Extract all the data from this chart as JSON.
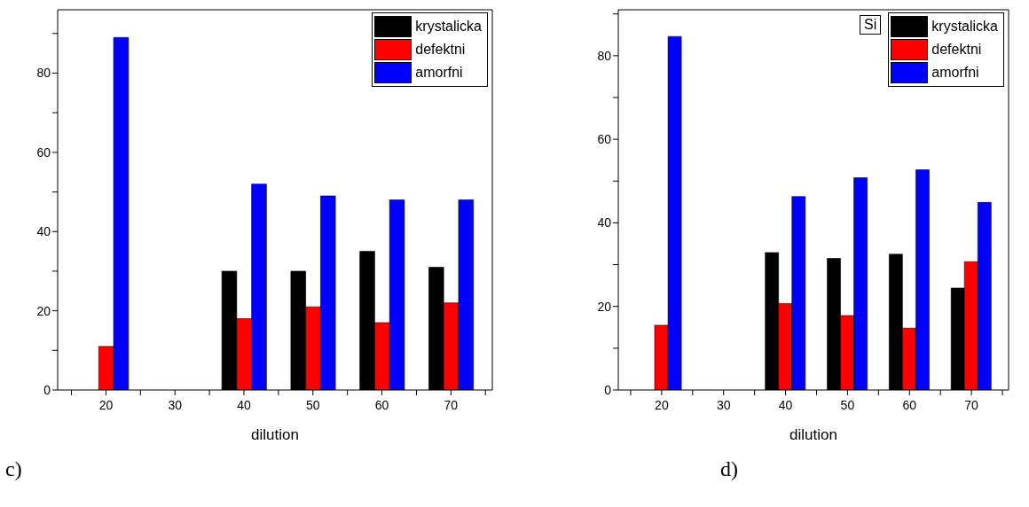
{
  "chart_data": [
    {
      "type": "bar",
      "xlabel": "dilution",
      "x": [
        20,
        30,
        40,
        50,
        60,
        70
      ],
      "series": [
        {
          "name": "krystalicka",
          "color": "#000000",
          "values": [
            null,
            null,
            30,
            30,
            35,
            31
          ]
        },
        {
          "name": "defektni",
          "color": "#ff0000",
          "values": [
            11,
            null,
            18,
            21,
            17,
            22
          ]
        },
        {
          "name": "amorfni",
          "color": "#0000ff",
          "values": [
            89,
            null,
            52,
            49,
            48,
            48
          ]
        }
      ],
      "xlim": [
        13,
        76
      ],
      "ylim": [
        0,
        96
      ],
      "xticks": [
        {
          "value": 15,
          "label": null
        },
        20,
        {
          "value": 25,
          "label": null
        },
        30,
        {
          "value": 35,
          "label": null
        },
        40,
        {
          "value": 45,
          "label": null
        },
        50,
        {
          "value": 55,
          "label": null
        },
        60,
        {
          "value": 65,
          "label": null
        },
        70,
        {
          "value": 75,
          "label": null
        }
      ],
      "yticks": [
        0,
        {
          "value": 10,
          "label": null
        },
        20,
        {
          "value": 30,
          "label": null
        },
        40,
        {
          "value": 50,
          "label": null
        },
        60,
        {
          "value": 70,
          "label": null
        },
        80,
        {
          "value": 90,
          "label": null
        }
      ],
      "legend": "top right",
      "annotations": [
        "c)"
      ]
    },
    {
      "type": "bar",
      "xlabel": "dilution",
      "x": [
        20,
        30,
        40,
        50,
        60,
        70
      ],
      "legend_title": "Si",
      "series": [
        {
          "name": "krystalicka",
          "color": "#000000",
          "values": [
            null,
            null,
            32.9,
            31.5,
            32.5,
            24.4
          ]
        },
        {
          "name": "defektni",
          "color": "#ff0000",
          "values": [
            15.5,
            null,
            20.7,
            17.8,
            14.8,
            30.7
          ]
        },
        {
          "name": "amorfni",
          "color": "#0000ff",
          "values": [
            84.6,
            null,
            46.3,
            50.8,
            52.7,
            44.9
          ]
        }
      ],
      "xlim": [
        13,
        76
      ],
      "ylim": [
        0,
        91
      ],
      "xticks": [
        {
          "value": 15,
          "label": null
        },
        20,
        {
          "value": 25,
          "label": null
        },
        30,
        {
          "value": 35,
          "label": null
        },
        40,
        {
          "value": 45,
          "label": null
        },
        50,
        {
          "value": 55,
          "label": null
        },
        60,
        {
          "value": 65,
          "label": null
        },
        70,
        {
          "value": 75,
          "label": null
        }
      ],
      "yticks": [
        0,
        {
          "value": 10,
          "label": null
        },
        20,
        {
          "value": 30,
          "label": null
        },
        40,
        {
          "value": 50,
          "label": null
        },
        60,
        {
          "value": 70,
          "label": null
        },
        80,
        {
          "value": 90,
          "label": null
        }
      ],
      "legend": "top right",
      "annotations": [
        "d)"
      ]
    }
  ]
}
